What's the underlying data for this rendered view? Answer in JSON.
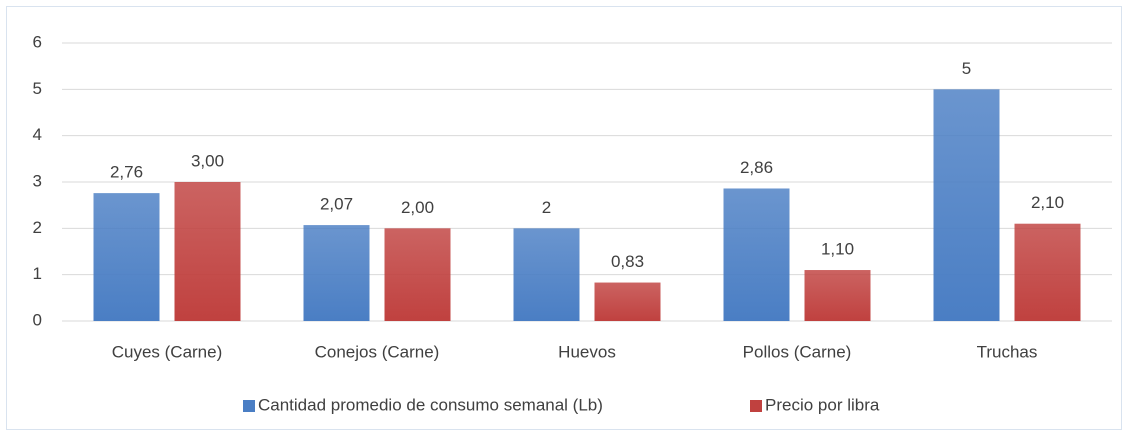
{
  "chart_data": {
    "type": "bar",
    "categories": [
      "Cuyes (Carne)",
      "Conejos (Carne)",
      "Huevos",
      "Pollos (Carne)",
      "Truchas"
    ],
    "series": [
      {
        "name": "Cantidad promedio de consumo semanal (Lb)",
        "color": "#4a7ec4",
        "values": [
          2.76,
          2.07,
          2,
          2.86,
          5
        ],
        "value_labels": [
          "2,76",
          "2,07",
          "2",
          "2,86",
          "5"
        ]
      },
      {
        "name": "Precio por libra",
        "color": "#c0413f",
        "values": [
          3.0,
          2.0,
          0.83,
          1.1,
          2.1
        ],
        "value_labels": [
          "3,00",
          "2,00",
          "0,83",
          "1,10",
          "2,10"
        ]
      }
    ],
    "ylim": [
      0,
      6
    ],
    "yticks": [
      0,
      1,
      2,
      3,
      4,
      5,
      6
    ],
    "grid": true,
    "legend": "bottom"
  }
}
